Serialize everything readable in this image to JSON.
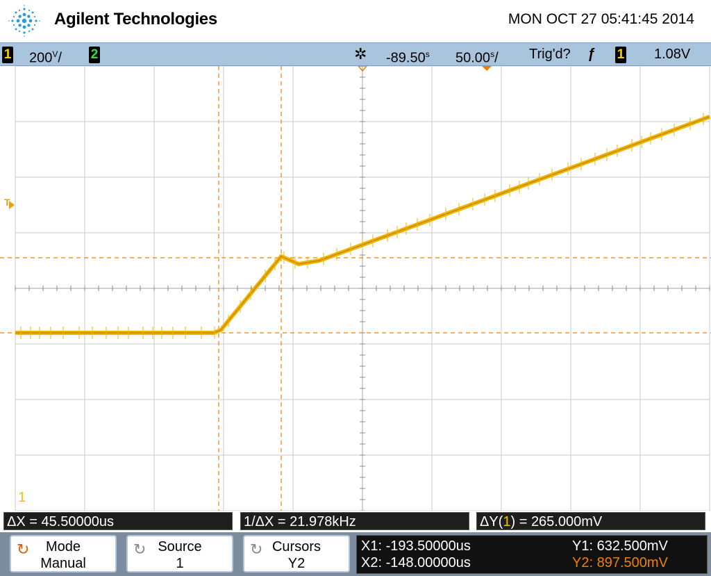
{
  "header": {
    "brand": "Agilent Technologies",
    "datetime": "MON OCT 27 05:41:45 2014"
  },
  "status": {
    "ch1_label": "1",
    "ch1_scale": "200",
    "ch1_scale_unit": "V",
    "ch1_scale_suffix": "/",
    "ch2_label": "2",
    "time_delay_icon": "sun-icon",
    "time_delay": "-89.50",
    "time_delay_unit": "s",
    "time_scale": "50.00",
    "time_scale_unit": "s",
    "time_scale_suffix": "/",
    "trigger_status": "Trig'd?",
    "trigger_slope_glyph": "ƒ",
    "trigger_channel": "1",
    "trigger_level": "1.08V"
  },
  "display": {
    "trigger_marker": "T",
    "ground_marker": "1",
    "trace_color": "#f0b400",
    "cursor_color": "#f08000"
  },
  "measurements": {
    "delta_x": "ΔX = 45.50000us",
    "inv_delta_x": "1/ΔX = 21.978kHz",
    "delta_y_prefix": "ΔY(",
    "delta_y_channel": "1",
    "delta_y_suffix": ") = 265.000mV"
  },
  "softkeys": [
    {
      "title": "Mode",
      "value": "Manual",
      "icon": "rotate-icon"
    },
    {
      "title": "Source",
      "value": "1",
      "icon": "rotate-icon"
    },
    {
      "title": "Cursors",
      "value": "Y2",
      "icon": "rotate-icon"
    }
  ],
  "cursor_readout": {
    "x1": "X1: -193.50000us",
    "x2": "X2: -148.00000us",
    "y1": "Y1: 632.500mV",
    "y2": "Y2: 897.500mV"
  }
}
